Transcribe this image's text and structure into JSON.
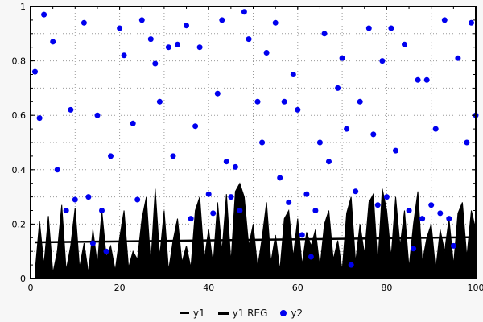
{
  "chart_data": {
    "type": "mixed",
    "title": "",
    "xlabel": "",
    "ylabel": "",
    "xlim": [
      0,
      100
    ],
    "ylim": [
      0,
      1
    ],
    "x_ticks": [
      0,
      20,
      40,
      60,
      80,
      100
    ],
    "x_tick_labels": [
      "0",
      "20",
      "40",
      "60",
      "80",
      "100"
    ],
    "y_ticks": [
      0,
      0.2,
      0.4,
      0.6,
      0.8,
      1
    ],
    "y_tick_labels": [
      "0",
      "0.2",
      "0.4",
      "0.6",
      "0.8",
      "1"
    ],
    "grid": {
      "x_step": 10,
      "y_step": 0.1,
      "x_minor_step": 5,
      "y_minor_step": 0.05,
      "style": "dotted"
    },
    "legend_position": "bottom-center",
    "colors": {
      "y1": "#000000",
      "y1_reg": "#000000",
      "y2": "#0000ee",
      "grid": "#999999",
      "plot_bg": "#ffffff",
      "page_bg": "#f7f7f7"
    },
    "x": [
      1,
      2,
      3,
      4,
      5,
      6,
      7,
      8,
      9,
      10,
      11,
      12,
      13,
      14,
      15,
      16,
      17,
      18,
      19,
      20,
      21,
      22,
      23,
      24,
      25,
      26,
      27,
      28,
      29,
      30,
      31,
      32,
      33,
      34,
      35,
      36,
      37,
      38,
      39,
      40,
      41,
      42,
      43,
      44,
      45,
      46,
      47,
      48,
      49,
      50,
      51,
      52,
      53,
      54,
      55,
      56,
      57,
      58,
      59,
      60,
      61,
      62,
      63,
      64,
      65,
      66,
      67,
      68,
      69,
      70,
      71,
      72,
      73,
      74,
      75,
      76,
      77,
      78,
      79,
      80,
      81,
      82,
      83,
      84,
      85,
      86,
      87,
      88,
      89,
      90,
      91,
      92,
      93,
      94,
      95,
      96,
      97,
      98,
      99,
      100
    ],
    "series": [
      {
        "name": "y1",
        "type": "area",
        "values": [
          0.02,
          0.21,
          0.05,
          0.23,
          0.02,
          0.1,
          0.27,
          0.03,
          0.12,
          0.26,
          0.04,
          0.13,
          0.02,
          0.18,
          0.05,
          0.25,
          0.08,
          0.12,
          0.03,
          0.15,
          0.25,
          0.04,
          0.1,
          0.07,
          0.22,
          0.3,
          0.05,
          0.33,
          0.08,
          0.25,
          0.03,
          0.14,
          0.22,
          0.06,
          0.12,
          0.04,
          0.25,
          0.3,
          0.07,
          0.18,
          0.05,
          0.28,
          0.1,
          0.31,
          0.06,
          0.32,
          0.35,
          0.3,
          0.12,
          0.2,
          0.04,
          0.15,
          0.28,
          0.06,
          0.16,
          0.03,
          0.22,
          0.25,
          0.08,
          0.22,
          0.05,
          0.17,
          0.12,
          0.18,
          0.04,
          0.2,
          0.25,
          0.07,
          0.14,
          0.03,
          0.24,
          0.3,
          0.06,
          0.2,
          0.09,
          0.28,
          0.31,
          0.05,
          0.33,
          0.25,
          0.08,
          0.3,
          0.12,
          0.25,
          0.04,
          0.2,
          0.32,
          0.06,
          0.15,
          0.2,
          0.03,
          0.18,
          0.1,
          0.22,
          0.05,
          0.24,
          0.28,
          0.08,
          0.25,
          0.18
        ]
      },
      {
        "name": "y1 REG",
        "type": "line",
        "x": [
          1,
          100
        ],
        "values": [
          0.133,
          0.152
        ]
      },
      {
        "name": "y2",
        "type": "scatter",
        "points": [
          [
            1,
            0.76
          ],
          [
            2,
            0.59
          ],
          [
            3,
            0.97
          ],
          [
            5,
            0.87
          ],
          [
            6,
            0.4
          ],
          [
            8,
            0.25
          ],
          [
            9,
            0.62
          ],
          [
            10,
            0.29
          ],
          [
            12,
            0.94
          ],
          [
            13,
            0.3
          ],
          [
            14,
            0.13
          ],
          [
            15,
            0.6
          ],
          [
            16,
            0.25
          ],
          [
            17,
            0.1
          ],
          [
            18,
            0.45
          ],
          [
            20,
            0.92
          ],
          [
            21,
            0.82
          ],
          [
            23,
            0.57
          ],
          [
            24,
            0.29
          ],
          [
            25,
            0.95
          ],
          [
            27,
            0.88
          ],
          [
            28,
            0.79
          ],
          [
            29,
            0.65
          ],
          [
            31,
            0.85
          ],
          [
            32,
            0.45
          ],
          [
            33,
            0.86
          ],
          [
            35,
            0.93
          ],
          [
            36,
            0.22
          ],
          [
            37,
            0.56
          ],
          [
            38,
            0.85
          ],
          [
            40,
            0.31
          ],
          [
            41,
            0.24
          ],
          [
            42,
            0.68
          ],
          [
            43,
            0.95
          ],
          [
            44,
            0.43
          ],
          [
            45,
            0.3
          ],
          [
            46,
            0.41
          ],
          [
            47,
            0.25
          ],
          [
            48,
            0.98
          ],
          [
            49,
            0.88
          ],
          [
            51,
            0.65
          ],
          [
            52,
            0.5
          ],
          [
            53,
            0.83
          ],
          [
            55,
            0.94
          ],
          [
            56,
            0.37
          ],
          [
            57,
            0.65
          ],
          [
            58,
            0.28
          ],
          [
            59,
            0.75
          ],
          [
            60,
            0.62
          ],
          [
            61,
            0.16
          ],
          [
            62,
            0.31
          ],
          [
            63,
            0.08
          ],
          [
            64,
            0.25
          ],
          [
            65,
            0.5
          ],
          [
            66,
            0.9
          ],
          [
            67,
            0.43
          ],
          [
            69,
            0.7
          ],
          [
            70,
            0.81
          ],
          [
            71,
            0.55
          ],
          [
            72,
            0.05
          ],
          [
            73,
            0.32
          ],
          [
            74,
            0.65
          ],
          [
            76,
            0.92
          ],
          [
            77,
            0.53
          ],
          [
            78,
            0.27
          ],
          [
            79,
            0.8
          ],
          [
            80,
            0.3
          ],
          [
            81,
            0.92
          ],
          [
            82,
            0.47
          ],
          [
            84,
            0.86
          ],
          [
            85,
            0.25
          ],
          [
            86,
            0.11
          ],
          [
            87,
            0.73
          ],
          [
            88,
            0.22
          ],
          [
            89,
            0.73
          ],
          [
            90,
            0.27
          ],
          [
            91,
            0.55
          ],
          [
            92,
            0.24
          ],
          [
            93,
            0.95
          ],
          [
            94,
            0.22
          ],
          [
            95,
            0.12
          ],
          [
            96,
            0.81
          ],
          [
            98,
            0.5
          ],
          [
            99,
            0.94
          ],
          [
            100,
            0.6
          ]
        ]
      }
    ]
  },
  "legend": {
    "y1_label": "y1",
    "y1_reg_label": "y1 REG",
    "y2_label": "y2"
  }
}
